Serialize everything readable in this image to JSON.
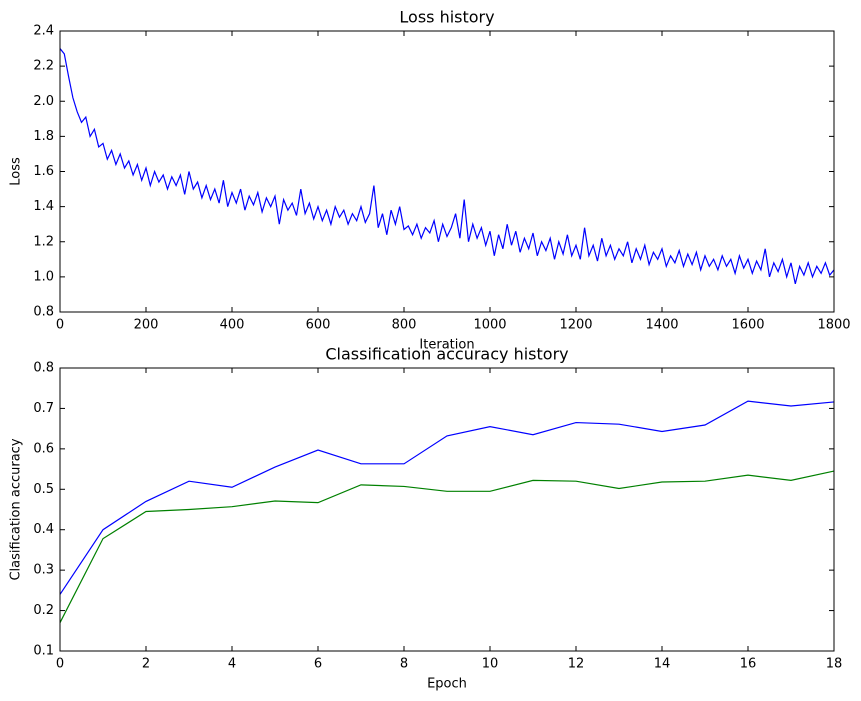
{
  "chart_data": [
    {
      "type": "line",
      "title": "Loss history",
      "xlabel": "Iteration",
      "ylabel": "Loss",
      "xlim": [
        0,
        1800
      ],
      "ylim": [
        0.8,
        2.4
      ],
      "xticks": [
        0,
        200,
        400,
        600,
        800,
        1000,
        1200,
        1400,
        1600,
        1800
      ],
      "yticks": [
        0.8,
        {
          "value": 1.0,
          "label": "1.0"
        },
        1.2,
        1.4,
        1.6,
        1.8,
        {
          "value": 2.0,
          "label": "2.0"
        },
        2.2,
        2.4
      ],
      "x": [
        0,
        10,
        20,
        30,
        40,
        50,
        60,
        70,
        80,
        90,
        100,
        110,
        120,
        130,
        140,
        150,
        160,
        170,
        180,
        190,
        200,
        210,
        220,
        230,
        240,
        250,
        260,
        270,
        280,
        290,
        300,
        310,
        320,
        330,
        340,
        350,
        360,
        370,
        380,
        390,
        400,
        410,
        420,
        430,
        440,
        450,
        460,
        470,
        480,
        490,
        500,
        510,
        520,
        530,
        540,
        550,
        560,
        570,
        580,
        590,
        600,
        610,
        620,
        630,
        640,
        650,
        660,
        670,
        680,
        690,
        700,
        710,
        720,
        730,
        740,
        750,
        760,
        770,
        780,
        790,
        800,
        810,
        820,
        830,
        840,
        850,
        860,
        870,
        880,
        890,
        900,
        910,
        920,
        930,
        940,
        950,
        960,
        970,
        980,
        990,
        1000,
        1010,
        1020,
        1030,
        1040,
        1050,
        1060,
        1070,
        1080,
        1090,
        1100,
        1110,
        1120,
        1130,
        1140,
        1150,
        1160,
        1170,
        1180,
        1190,
        1200,
        1210,
        1220,
        1230,
        1240,
        1250,
        1260,
        1270,
        1280,
        1290,
        1300,
        1310,
        1320,
        1330,
        1340,
        1350,
        1360,
        1370,
        1380,
        1390,
        1400,
        1410,
        1420,
        1430,
        1440,
        1450,
        1460,
        1470,
        1480,
        1490,
        1500,
        1510,
        1520,
        1530,
        1540,
        1550,
        1560,
        1570,
        1580,
        1590,
        1600,
        1610,
        1620,
        1630,
        1640,
        1650,
        1660,
        1670,
        1680,
        1690,
        1700,
        1710,
        1720,
        1730,
        1740,
        1750,
        1760,
        1770,
        1780,
        1790,
        1800
      ],
      "series": [
        {
          "color": "#0000ff",
          "values": [
            2.3,
            2.27,
            2.14,
            2.02,
            1.94,
            1.88,
            1.91,
            1.8,
            1.84,
            1.74,
            1.76,
            1.67,
            1.72,
            1.64,
            1.7,
            1.62,
            1.66,
            1.58,
            1.64,
            1.55,
            1.62,
            1.52,
            1.6,
            1.54,
            1.58,
            1.5,
            1.57,
            1.52,
            1.58,
            1.47,
            1.6,
            1.5,
            1.54,
            1.45,
            1.52,
            1.44,
            1.5,
            1.42,
            1.55,
            1.4,
            1.48,
            1.42,
            1.5,
            1.38,
            1.46,
            1.41,
            1.48,
            1.37,
            1.45,
            1.4,
            1.46,
            1.3,
            1.44,
            1.38,
            1.42,
            1.35,
            1.5,
            1.36,
            1.42,
            1.33,
            1.4,
            1.32,
            1.38,
            1.3,
            1.4,
            1.34,
            1.38,
            1.3,
            1.36,
            1.32,
            1.4,
            1.31,
            1.36,
            1.52,
            1.28,
            1.36,
            1.24,
            1.38,
            1.3,
            1.4,
            1.27,
            1.29,
            1.24,
            1.3,
            1.22,
            1.28,
            1.25,
            1.32,
            1.2,
            1.3,
            1.23,
            1.28,
            1.36,
            1.22,
            1.44,
            1.2,
            1.3,
            1.22,
            1.28,
            1.18,
            1.26,
            1.12,
            1.24,
            1.16,
            1.3,
            1.18,
            1.26,
            1.14,
            1.22,
            1.16,
            1.25,
            1.12,
            1.2,
            1.15,
            1.22,
            1.1,
            1.2,
            1.13,
            1.24,
            1.12,
            1.18,
            1.1,
            1.28,
            1.12,
            1.18,
            1.09,
            1.22,
            1.12,
            1.18,
            1.1,
            1.16,
            1.12,
            1.2,
            1.08,
            1.16,
            1.1,
            1.18,
            1.07,
            1.14,
            1.1,
            1.16,
            1.06,
            1.12,
            1.08,
            1.15,
            1.06,
            1.13,
            1.07,
            1.14,
            1.04,
            1.12,
            1.06,
            1.1,
            1.04,
            1.12,
            1.06,
            1.1,
            1.02,
            1.12,
            1.05,
            1.1,
            1.02,
            1.09,
            1.04,
            1.16,
            1.0,
            1.08,
            1.03,
            1.1,
            1.0,
            1.08,
            0.96,
            1.06,
            1.01,
            1.08,
            1.0,
            1.06,
            1.02,
            1.08,
            1.01,
            1.04
          ]
        }
      ]
    },
    {
      "type": "line",
      "title": "Classification accuracy history",
      "xlabel": "Epoch",
      "ylabel": "Clasification accuracy",
      "xlim": [
        0,
        18
      ],
      "ylim": [
        0.1,
        0.8
      ],
      "xticks": [
        0,
        2,
        4,
        6,
        8,
        10,
        12,
        14,
        16,
        18
      ],
      "yticks": [
        0.1,
        0.2,
        0.3,
        0.4,
        0.5,
        0.6,
        0.7,
        0.8
      ],
      "x": [
        0,
        1,
        2,
        3,
        4,
        5,
        6,
        7,
        8,
        9,
        10,
        11,
        12,
        13,
        14,
        15,
        16,
        17,
        18
      ],
      "series": [
        {
          "color": "#0000ff",
          "values": [
            0.24,
            0.4,
            0.47,
            0.52,
            0.505,
            0.555,
            0.597,
            0.563,
            0.563,
            0.632,
            0.655,
            0.635,
            0.665,
            0.661,
            0.643,
            0.659,
            0.718,
            0.706,
            0.716
          ]
        },
        {
          "color": "#008000",
          "values": [
            0.17,
            0.378,
            0.445,
            0.45,
            0.457,
            0.471,
            0.467,
            0.511,
            0.507,
            0.495,
            0.495,
            0.522,
            0.52,
            0.502,
            0.518,
            0.52,
            0.535,
            0.522,
            0.545
          ]
        }
      ]
    }
  ]
}
